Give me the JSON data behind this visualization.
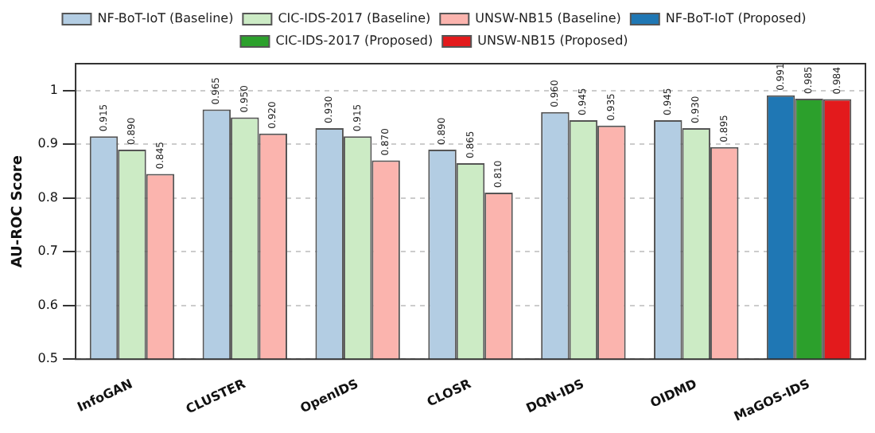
{
  "chart_data": {
    "type": "bar",
    "ylabel": "AU-ROC Score",
    "categories": [
      "InfoGAN",
      "CLUSTER",
      "OpenIDS",
      "CLOSR",
      "DQN-IDS",
      "OIDMD",
      "MaGOS-IDS"
    ],
    "series": [
      {
        "name": "NF-BoT-IoT (Baseline)",
        "color": "#b3cde3",
        "values": [
          0.915,
          0.965,
          0.93,
          0.89,
          0.96,
          0.945,
          null
        ],
        "value_labels": [
          "0.915",
          "0.965",
          "0.930",
          "0.890",
          "0.960",
          "0.945",
          null
        ]
      },
      {
        "name": "CIC-IDS-2017 (Baseline)",
        "color": "#ccebc5",
        "values": [
          0.89,
          0.95,
          0.915,
          0.865,
          0.945,
          0.93,
          null
        ],
        "value_labels": [
          "0.890",
          "0.950",
          "0.915",
          "0.865",
          "0.945",
          "0.930",
          null
        ]
      },
      {
        "name": "UNSW-NB15 (Baseline)",
        "color": "#fbb4ae",
        "values": [
          0.845,
          0.92,
          0.87,
          0.81,
          0.935,
          0.895,
          null
        ],
        "value_labels": [
          "0.845",
          "0.920",
          "0.870",
          "0.810",
          "0.935",
          "0.895",
          null
        ]
      },
      {
        "name": "NF-BoT-IoT (Proposed)",
        "color": "#1f77b4",
        "values": [
          null,
          null,
          null,
          null,
          null,
          null,
          0.991
        ],
        "value_labels": [
          null,
          null,
          null,
          null,
          null,
          null,
          "0.991"
        ]
      },
      {
        "name": "CIC-IDS-2017 (Proposed)",
        "color": "#2ca02c",
        "values": [
          null,
          null,
          null,
          null,
          null,
          null,
          0.985
        ],
        "value_labels": [
          null,
          null,
          null,
          null,
          null,
          null,
          "0.985"
        ]
      },
      {
        "name": "UNSW-NB15 (Proposed)",
        "color": "#e31a1c",
        "values": [
          null,
          null,
          null,
          null,
          null,
          null,
          0.984
        ],
        "value_labels": [
          null,
          null,
          null,
          null,
          null,
          null,
          "0.984"
        ]
      }
    ],
    "ylim": [
      0.5,
      1.05
    ],
    "yticks": [
      0.5,
      0.6,
      0.7,
      0.8,
      0.9,
      1.0
    ],
    "grid": "y",
    "legend": "top"
  }
}
